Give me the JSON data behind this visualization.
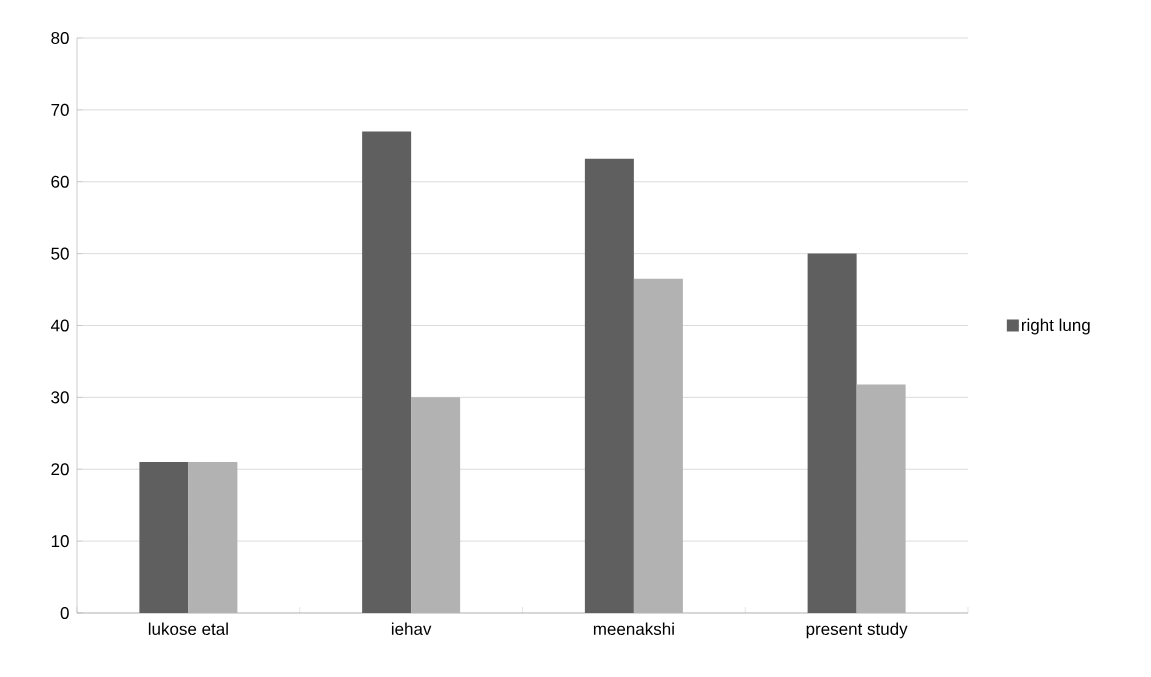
{
  "chart_data": {
    "type": "bar",
    "categories": [
      "lukose etal",
      "iehav",
      "meenakshi",
      "present study"
    ],
    "series": [
      {
        "name": "right lung",
        "color": "#5f5f5f",
        "values": [
          21,
          67,
          63.2,
          50
        ]
      },
      {
        "color": "#b2b2b2",
        "values": [
          21,
          30,
          46.5,
          31.8
        ]
      }
    ],
    "ylim": [
      0,
      80
    ],
    "yticks": [
      0,
      10,
      20,
      30,
      40,
      50,
      60,
      70,
      80
    ],
    "grid": "y",
    "legend": "right"
  }
}
